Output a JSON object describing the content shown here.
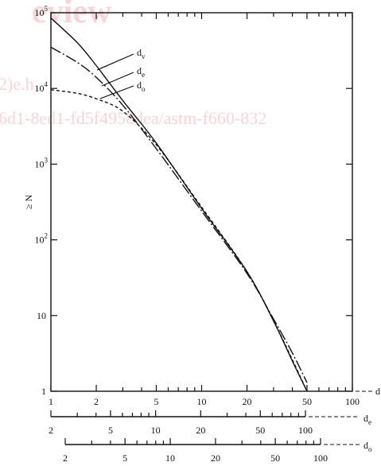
{
  "watermark": {
    "line1": "eview",
    "line2": "2)e.h",
    "line3": "6d1-8ed1-fd5f4958dea/astm-f660-832"
  },
  "chart_data": {
    "type": "line",
    "title": "",
    "ylabel": "≥ N",
    "yscale": "log",
    "ylim": [
      1,
      100000
    ],
    "xscale": "log",
    "xlim": [
      1,
      100
    ],
    "grid": false,
    "y_ticks": [
      {
        "base": "10",
        "exp": "5",
        "value": 100000
      },
      {
        "base": "10",
        "exp": "4",
        "value": 10000
      },
      {
        "base": "10",
        "exp": "3",
        "value": 1000
      },
      {
        "base": "10",
        "exp": "2",
        "value": 100
      },
      {
        "base": "10",
        "exp": "",
        "value": 10
      },
      {
        "base": "1",
        "exp": "",
        "value": 1
      }
    ],
    "x_axes": [
      {
        "name": "d",
        "ticks": [
          {
            "label": "1",
            "value": 1
          },
          {
            "label": "2",
            "value": 2
          },
          {
            "label": "5",
            "value": 5
          },
          {
            "label": "10",
            "value": 10
          },
          {
            "label": "20",
            "value": 20
          },
          {
            "label": "50",
            "value": 50
          },
          {
            "label": "100",
            "value": 100
          }
        ]
      },
      {
        "name": "d",
        "subscript": "e",
        "ticks": [
          {
            "label": "2",
            "value": 2
          },
          {
            "label": "5",
            "value": 5
          },
          {
            "label": "10",
            "value": 10
          },
          {
            "label": "20",
            "value": 20
          },
          {
            "label": "50",
            "value": 50
          },
          {
            "label": "100",
            "value": 100
          }
        ]
      },
      {
        "name": "d",
        "subscript": "o",
        "ticks": [
          {
            "label": "2",
            "value": 2
          },
          {
            "label": "5",
            "value": 5
          },
          {
            "label": "10",
            "value": 10
          },
          {
            "label": "20",
            "value": 20
          },
          {
            "label": "50",
            "value": 50
          },
          {
            "label": "100",
            "value": 100
          }
        ]
      }
    ],
    "series": [
      {
        "name": "d",
        "subscript": "v",
        "style": "solid",
        "x": [
          1,
          1.5,
          2,
          3,
          5,
          10,
          20,
          30,
          40,
          50
        ],
        "y": [
          85000,
          40000,
          20000,
          6900,
          1900,
          260,
          38,
          8.5,
          2.5,
          1
        ]
      },
      {
        "name": "d",
        "subscript": "e",
        "style": "dash-dot",
        "x": [
          1,
          1.5,
          2,
          3,
          5,
          10,
          20,
          30,
          40,
          50
        ],
        "y": [
          35000,
          22000,
          14000,
          6000,
          1600,
          240,
          36,
          9,
          3.2,
          1.3
        ]
      },
      {
        "name": "d",
        "subscript": "o",
        "style": "dashed",
        "x": [
          1,
          1.5,
          2,
          3,
          5,
          10,
          20,
          30,
          40,
          50
        ],
        "y": [
          9600,
          8600,
          7300,
          5000,
          1800,
          270,
          38,
          8.5,
          2.6,
          1
        ]
      }
    ]
  }
}
